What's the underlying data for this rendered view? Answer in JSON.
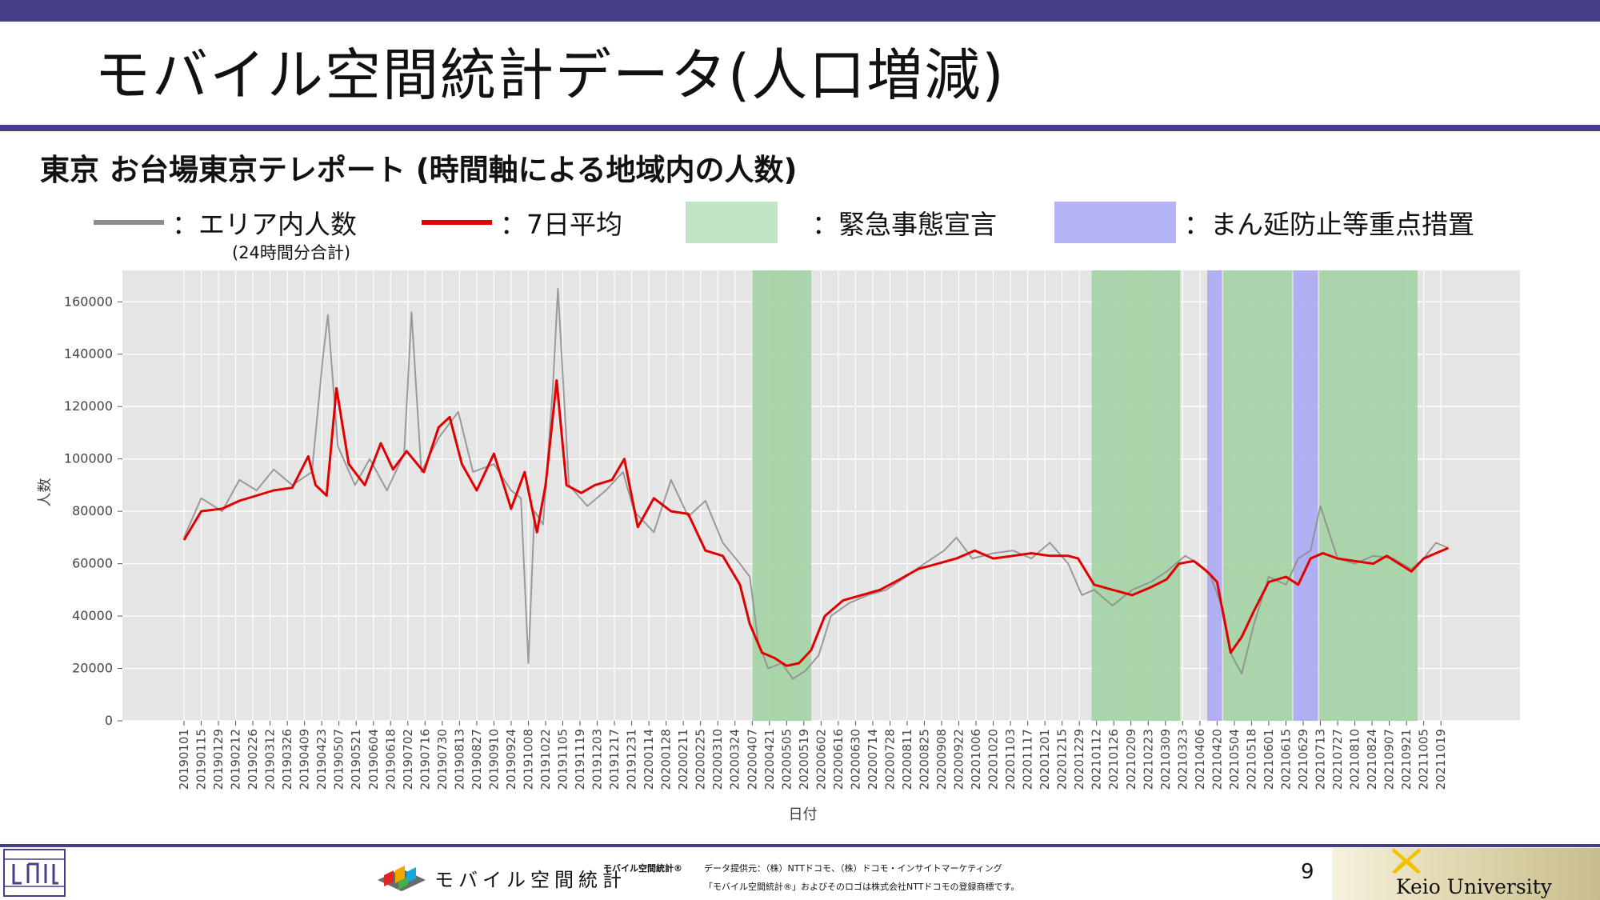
{
  "slide": {
    "title": "モバイル空間統計データ(人口増減)",
    "subtitle": "東京 お台場東京テレポート (時間軸による地域内の人数)",
    "page_number": "9"
  },
  "legend": {
    "daily_label": "：エリア内人数",
    "daily_note": "(24時間分合計)",
    "avg_label": "：7日平均",
    "emergency_label": "：緊急事態宣言",
    "priority_label": "：まん延防止等重点措置"
  },
  "colors": {
    "header_bar": "#46408a",
    "daily_line": "#8c8c8c",
    "avg_line": "#e00000",
    "emergency": "#a3d3a3",
    "priority": "#a9a9f2",
    "plot_bg": "#e5e5e5"
  },
  "footer": {
    "brand_text": "モバイル空間統計",
    "brand_small": "モバイル空間統計®",
    "provider": "データ提供元：（株）NTTドコモ、（株）ドコモ・インサイトマーケティング",
    "trademark": "「モバイル空間統計®」およびそのロゴは株式会社NTTドコモの登録商標です。",
    "university": "Keio University"
  },
  "chart_data": {
    "type": "line",
    "xlabel": "日付",
    "ylabel": "人数",
    "ylim": [
      0,
      172000
    ],
    "yticks": [
      0,
      20000,
      40000,
      60000,
      80000,
      100000,
      120000,
      140000,
      160000
    ],
    "xticks": [
      "20190101",
      "20190115",
      "20190129",
      "20190212",
      "20190226",
      "20190312",
      "20190326",
      "20190409",
      "20190423",
      "20190507",
      "20190521",
      "20190604",
      "20190618",
      "20190702",
      "20190716",
      "20190730",
      "20190813",
      "20190827",
      "20190910",
      "20190924",
      "20191008",
      "20191022",
      "20191105",
      "20191119",
      "20191203",
      "20191217",
      "20191231",
      "20200114",
      "20200128",
      "20200211",
      "20200225",
      "20200310",
      "20200324",
      "20200407",
      "20200421",
      "20200505",
      "20200519",
      "20200602",
      "20200616",
      "20200630",
      "20200714",
      "20200728",
      "20200811",
      "20200825",
      "20200908",
      "20200922",
      "20201006",
      "20201020",
      "20201103",
      "20201117",
      "20201201",
      "20201215",
      "20201229",
      "20210112",
      "20210126",
      "20210209",
      "20210223",
      "20210309",
      "20210323",
      "20210406",
      "20210420",
      "20210504",
      "20210518",
      "20210601",
      "20210615",
      "20210629",
      "20210713",
      "20210727",
      "20210810",
      "20210824",
      "20210907",
      "20210921",
      "20211005",
      "20211019"
    ],
    "grid": true,
    "shaded_periods": [
      {
        "type": "emergency",
        "start": "2020-04-07",
        "end": "2020-05-25"
      },
      {
        "type": "emergency",
        "start": "2021-01-08",
        "end": "2021-03-21"
      },
      {
        "type": "priority",
        "start": "2021-04-12",
        "end": "2021-04-24"
      },
      {
        "type": "emergency",
        "start": "2021-04-25",
        "end": "2021-06-20"
      },
      {
        "type": "priority",
        "start": "2021-06-21",
        "end": "2021-07-11"
      },
      {
        "type": "emergency",
        "start": "2021-07-12",
        "end": "2021-09-30"
      }
    ],
    "series": [
      {
        "name": "エリア内人数",
        "style": "daily",
        "date": [
          "2019-01-01",
          "2019-01-15",
          "2019-02-01",
          "2019-02-15",
          "2019-03-01",
          "2019-03-15",
          "2019-03-30",
          "2019-04-15",
          "2019-04-24",
          "2019-04-28",
          "2019-05-06",
          "2019-05-20",
          "2019-06-01",
          "2019-06-15",
          "2019-06-29",
          "2019-07-05",
          "2019-07-13",
          "2019-07-27",
          "2019-08-12",
          "2019-08-24",
          "2019-09-10",
          "2019-09-24",
          "2019-10-02",
          "2019-10-08",
          "2019-10-13",
          "2019-10-20",
          "2019-10-28",
          "2019-11-01",
          "2019-11-10",
          "2019-11-25",
          "2019-12-10",
          "2019-12-24",
          "2020-01-02",
          "2020-01-18",
          "2020-02-01",
          "2020-02-15",
          "2020-02-29",
          "2020-03-14",
          "2020-03-28",
          "2020-04-05",
          "2020-04-12",
          "2020-04-20",
          "2020-05-01",
          "2020-05-10",
          "2020-05-20",
          "2020-05-31",
          "2020-06-10",
          "2020-06-25",
          "2020-07-10",
          "2020-07-25",
          "2020-08-10",
          "2020-08-25",
          "2020-09-10",
          "2020-09-20",
          "2020-10-03",
          "2020-10-20",
          "2020-11-05",
          "2020-11-20",
          "2020-12-05",
          "2020-12-20",
          "2020-12-31",
          "2021-01-10",
          "2021-01-25",
          "2021-02-10",
          "2021-02-25",
          "2021-03-10",
          "2021-03-25",
          "2021-04-05",
          "2021-04-15",
          "2021-04-25",
          "2021-05-02",
          "2021-05-10",
          "2021-05-20",
          "2021-06-01",
          "2021-06-15",
          "2021-06-25",
          "2021-07-05",
          "2021-07-13",
          "2021-07-27",
          "2021-08-10",
          "2021-08-25",
          "2021-09-10",
          "2021-09-25",
          "2021-10-05",
          "2021-10-15",
          "2021-10-25"
        ],
        "values": [
          70000,
          85000,
          80000,
          92000,
          88000,
          96000,
          90000,
          95000,
          139000,
          155000,
          105000,
          90000,
          100000,
          88000,
          102000,
          156000,
          95000,
          108000,
          118000,
          95000,
          98000,
          88000,
          85000,
          22000,
          80000,
          75000,
          128000,
          165000,
          90000,
          82000,
          88000,
          95000,
          80000,
          72000,
          92000,
          78000,
          84000,
          68000,
          60000,
          55000,
          30000,
          20000,
          22000,
          16000,
          19000,
          25000,
          40000,
          45000,
          48000,
          50000,
          55000,
          60000,
          65000,
          70000,
          62000,
          64000,
          65000,
          62000,
          68000,
          60000,
          48000,
          50000,
          44000,
          50000,
          53000,
          57000,
          63000,
          60000,
          55000,
          42000,
          25000,
          18000,
          37000,
          55000,
          52000,
          62000,
          65000,
          82000,
          62000,
          60000,
          63000,
          62000,
          58000,
          62000,
          68000,
          66000
        ]
      },
      {
        "name": "7日平均",
        "style": "avg",
        "date": [
          "2019-01-01",
          "2019-01-15",
          "2019-02-01",
          "2019-02-15",
          "2019-03-01",
          "2019-03-15",
          "2019-03-30",
          "2019-04-12",
          "2019-04-18",
          "2019-04-27",
          "2019-05-05",
          "2019-05-15",
          "2019-05-28",
          "2019-06-10",
          "2019-06-20",
          "2019-07-01",
          "2019-07-15",
          "2019-07-27",
          "2019-08-05",
          "2019-08-15",
          "2019-08-27",
          "2019-09-10",
          "2019-09-24",
          "2019-10-05",
          "2019-10-15",
          "2019-10-22",
          "2019-10-31",
          "2019-11-08",
          "2019-11-20",
          "2019-12-01",
          "2019-12-15",
          "2019-12-25",
          "2020-01-05",
          "2020-01-18",
          "2020-02-01",
          "2020-02-15",
          "2020-02-29",
          "2020-03-14",
          "2020-03-28",
          "2020-04-05",
          "2020-04-15",
          "2020-04-25",
          "2020-05-05",
          "2020-05-15",
          "2020-05-25",
          "2020-06-05",
          "2020-06-20",
          "2020-07-05",
          "2020-07-20",
          "2020-08-05",
          "2020-08-20",
          "2020-09-05",
          "2020-09-20",
          "2020-10-05",
          "2020-10-20",
          "2020-11-05",
          "2020-11-20",
          "2020-12-05",
          "2020-12-20",
          "2020-12-28",
          "2021-01-10",
          "2021-01-25",
          "2021-02-10",
          "2021-02-25",
          "2021-03-10",
          "2021-03-20",
          "2021-04-01",
          "2021-04-12",
          "2021-04-20",
          "2021-05-01",
          "2021-05-10",
          "2021-05-20",
          "2021-06-01",
          "2021-06-15",
          "2021-06-25",
          "2021-07-05",
          "2021-07-15",
          "2021-07-27",
          "2021-08-10",
          "2021-08-25",
          "2021-09-05",
          "2021-09-15",
          "2021-09-25",
          "2021-10-05",
          "2021-10-15",
          "2021-10-25"
        ],
        "values": [
          69000,
          80000,
          81000,
          84000,
          86000,
          88000,
          89000,
          101000,
          90000,
          86000,
          127000,
          98000,
          90000,
          106000,
          96000,
          103000,
          95000,
          112000,
          116000,
          98000,
          88000,
          102000,
          81000,
          95000,
          72000,
          90000,
          130000,
          90000,
          87000,
          90000,
          92000,
          100000,
          74000,
          85000,
          80000,
          79000,
          65000,
          63000,
          52000,
          37000,
          26000,
          24000,
          21000,
          22000,
          27000,
          40000,
          46000,
          48000,
          50000,
          54000,
          58000,
          60000,
          62000,
          65000,
          62000,
          63000,
          64000,
          63000,
          63000,
          62000,
          52000,
          50000,
          48000,
          51000,
          54000,
          60000,
          61000,
          57000,
          53000,
          26000,
          32000,
          42000,
          53000,
          55000,
          52000,
          62000,
          64000,
          62000,
          61000,
          60000,
          63000,
          60000,
          57000,
          62000,
          64000,
          66000
        ]
      }
    ]
  }
}
